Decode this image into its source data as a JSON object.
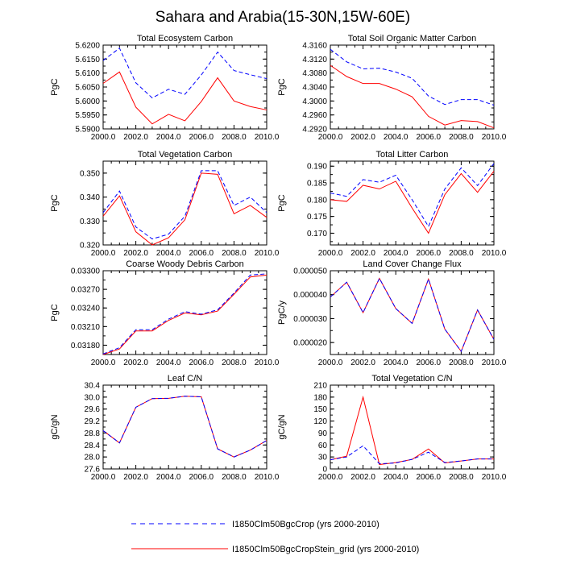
{
  "title": "Sahara and Arabia(15-30N,15W-60E)",
  "legend": [
    {
      "label": "I1850Clm50BgcCrop (yrs 2000-2010)",
      "color": "#0000ff",
      "style": "dashed"
    },
    {
      "label": "I1850Clm50BgcCropStein_grid (yrs 2000-2010)",
      "color": "#ff0000",
      "style": "solid"
    }
  ],
  "chart_data": [
    {
      "type": "line",
      "title": "Total Ecosystem Carbon",
      "ylabel": "PgC",
      "x": [
        2000,
        2001,
        2002,
        2003,
        2004,
        2005,
        2006,
        2007,
        2008,
        2009,
        2010
      ],
      "xticks": [
        "2000.0",
        "2002.0",
        "2004.0",
        "2006.0",
        "2008.0",
        "2010.0"
      ],
      "xlim": [
        2000,
        2010
      ],
      "ylim": [
        5.59,
        5.62
      ],
      "yticks": [
        "5.5900",
        "5.5950",
        "5.6000",
        "5.6050",
        "5.6100",
        "5.6150",
        "5.6200"
      ],
      "series": [
        {
          "name": "I1850Clm50BgcCrop (yrs 2000-2010)",
          "values": [
            5.6145,
            5.6189,
            5.6065,
            5.6011,
            5.6042,
            5.6024,
            5.6093,
            5.6175,
            5.6109,
            5.6094,
            5.608
          ]
        },
        {
          "name": "I1850Clm50BgcCropStein_grid (yrs 2000-2010)",
          "values": [
            5.6063,
            5.6104,
            5.5978,
            5.5918,
            5.5952,
            5.5929,
            5.5998,
            5.6083,
            5.6,
            5.598,
            5.5968
          ]
        }
      ]
    },
    {
      "type": "line",
      "title": "Total Soil Organic Matter Carbon",
      "ylabel": "PgC",
      "x": [
        2000,
        2001,
        2002,
        2003,
        2004,
        2005,
        2006,
        2007,
        2008,
        2009,
        2010
      ],
      "xticks": [
        "2000.0",
        "2002.0",
        "2004.0",
        "2006.0",
        "2008.0",
        "2010.0"
      ],
      "xlim": [
        2000,
        2010
      ],
      "ylim": [
        4.292,
        4.316
      ],
      "yticks": [
        "4.2920",
        "4.2960",
        "4.3000",
        "4.3040",
        "4.3080",
        "4.3120",
        "4.3160"
      ],
      "series": [
        {
          "name": "I1850Clm50BgcCrop (yrs 2000-2010)",
          "values": [
            4.3148,
            4.3112,
            4.3092,
            4.3094,
            4.3083,
            4.3065,
            4.3014,
            4.299,
            4.3004,
            4.3004,
            4.2988
          ]
        },
        {
          "name": "I1850Clm50BgcCropStein_grid (yrs 2000-2010)",
          "values": [
            4.3102,
            4.307,
            4.305,
            4.305,
            4.3034,
            4.3012,
            4.2956,
            4.2931,
            4.2944,
            4.2941,
            4.2923
          ]
        }
      ]
    },
    {
      "type": "line",
      "title": "Total Vegetation Carbon",
      "ylabel": "PgC",
      "x": [
        2000,
        2001,
        2002,
        2003,
        2004,
        2005,
        2006,
        2007,
        2008,
        2009,
        2010
      ],
      "xticks": [
        "2000.0",
        "2002.0",
        "2004.0",
        "2006.0",
        "2008.0",
        "2010.0"
      ],
      "xlim": [
        2000,
        2010
      ],
      "ylim": [
        0.32,
        0.355
      ],
      "yticks": [
        "0.320",
        "0.330",
        "0.340",
        "0.350"
      ],
      "series": [
        {
          "name": "I1850Clm50BgcCrop (yrs 2000-2010)",
          "values": [
            0.3335,
            0.3425,
            0.3275,
            0.3225,
            0.3245,
            0.332,
            0.351,
            0.351,
            0.3365,
            0.34,
            0.3335
          ]
        },
        {
          "name": "I1850Clm50BgcCropStein_grid (yrs 2000-2010)",
          "values": [
            0.332,
            0.3405,
            0.3255,
            0.32,
            0.323,
            0.3305,
            0.35,
            0.3495,
            0.333,
            0.3365,
            0.3315
          ]
        }
      ]
    },
    {
      "type": "line",
      "title": "Total Litter Carbon",
      "ylabel": "PgC",
      "x": [
        2000,
        2001,
        2002,
        2003,
        2004,
        2005,
        2006,
        2007,
        2008,
        2009,
        2010
      ],
      "xticks": [
        "2000.0",
        "2002.0",
        "2004.0",
        "2006.0",
        "2008.0",
        "2010.0"
      ],
      "xlim": [
        2000,
        2010
      ],
      "ylim": [
        0.1665,
        0.1915
      ],
      "yticks": [
        "0.170",
        "0.175",
        "0.180",
        "0.185",
        "0.190"
      ],
      "series": [
        {
          "name": "I1850Clm50BgcCrop (yrs 2000-2010)",
          "values": [
            0.182,
            0.181,
            0.186,
            0.1852,
            0.1873,
            0.18,
            0.172,
            0.1832,
            0.1895,
            0.1842,
            0.1908
          ]
        },
        {
          "name": "I1850Clm50BgcCropStein_grid (yrs 2000-2010)",
          "values": [
            0.18,
            0.1795,
            0.1843,
            0.1832,
            0.1855,
            0.1775,
            0.17,
            0.1815,
            0.1878,
            0.1822,
            0.1885
          ]
        }
      ]
    },
    {
      "type": "line",
      "title": "Coarse Woody Debris Carbon",
      "ylabel": "PgC",
      "x": [
        2000,
        2001,
        2002,
        2003,
        2004,
        2005,
        2006,
        2007,
        2008,
        2009,
        2010
      ],
      "xticks": [
        "2000.0",
        "2002.0",
        "2004.0",
        "2006.0",
        "2008.0",
        "2010.0"
      ],
      "xlim": [
        2000,
        2010
      ],
      "ylim": [
        0.03165,
        0.033
      ],
      "yticks": [
        "0.03180",
        "0.03210",
        "0.03240",
        "0.03270",
        "0.03300"
      ],
      "series": [
        {
          "name": "I1850Clm50BgcCrop (yrs 2000-2010)",
          "values": [
            0.03166,
            0.03176,
            0.03205,
            0.03205,
            0.03222,
            0.03234,
            0.0323,
            0.03237,
            0.03264,
            0.03293,
            0.03295
          ]
        },
        {
          "name": "I1850Clm50BgcCropStein_grid (yrs 2000-2010)",
          "values": [
            0.03165,
            0.03174,
            0.03203,
            0.03203,
            0.0322,
            0.03232,
            0.03229,
            0.03235,
            0.03262,
            0.0329,
            0.03293
          ]
        }
      ]
    },
    {
      "type": "line",
      "title": "Land Cover Change Flux",
      "ylabel": "PgC/y",
      "x": [
        2000,
        2001,
        2002,
        2003,
        2004,
        2005,
        2006,
        2007,
        2008,
        2009,
        2010
      ],
      "xticks": [
        "2000.0",
        "2002.0",
        "2004.0",
        "2006.0",
        "2008.0",
        "2010.0"
      ],
      "xlim": [
        2000,
        2010
      ],
      "ylim": [
        1.5e-05,
        5e-05
      ],
      "yticks": [
        "0.000020",
        "0.000030",
        "0.000040",
        "0.000050"
      ],
      "series": [
        {
          "name": "I1850Clm50BgcCrop (yrs 2000-2010)",
          "values": [
            3.9e-05,
            4.52e-05,
            3.25e-05,
            4.68e-05,
            3.42e-05,
            2.8e-05,
            4.65e-05,
            2.56e-05,
            1.63e-05,
            3.36e-05,
            2.13e-05
          ]
        },
        {
          "name": "I1850Clm50BgcCropStein_grid (yrs 2000-2010)",
          "values": [
            3.9e-05,
            4.52e-05,
            3.25e-05,
            4.68e-05,
            3.42e-05,
            2.8e-05,
            4.65e-05,
            2.56e-05,
            1.63e-05,
            3.36e-05,
            2.13e-05
          ]
        }
      ]
    },
    {
      "type": "line",
      "title": "Leaf C/N",
      "ylabel": "gC/gN",
      "x": [
        2000,
        2001,
        2002,
        2003,
        2004,
        2005,
        2006,
        2007,
        2008,
        2009,
        2010
      ],
      "xticks": [
        "2000.0",
        "2002.0",
        "2004.0",
        "2006.0",
        "2008.0",
        "2010.0"
      ],
      "xlim": [
        2000,
        2010
      ],
      "ylim": [
        27.6,
        30.4
      ],
      "yticks": [
        "27.6",
        "28.0",
        "28.4",
        "28.8",
        "29.2",
        "29.6",
        "30.0",
        "30.4"
      ],
      "series": [
        {
          "name": "I1850Clm50BgcCrop (yrs 2000-2010)",
          "values": [
            28.88,
            28.47,
            29.66,
            29.95,
            29.96,
            30.03,
            30.01,
            28.27,
            28.0,
            28.23,
            28.55
          ]
        },
        {
          "name": "I1850Clm50BgcCropStein_grid (yrs 2000-2010)",
          "values": [
            28.88,
            28.47,
            29.66,
            29.95,
            29.96,
            30.03,
            30.01,
            28.27,
            28.0,
            28.23,
            28.55
          ]
        }
      ]
    },
    {
      "type": "line",
      "title": "Total Vegetation C/N",
      "ylabel": "gC/gN",
      "x": [
        2000,
        2001,
        2002,
        2003,
        2004,
        2005,
        2006,
        2007,
        2008,
        2009,
        2010
      ],
      "xticks": [
        "2000.0",
        "2002.0",
        "2004.0",
        "2006.0",
        "2008.0",
        "2010.0"
      ],
      "xlim": [
        2000,
        2010
      ],
      "ylim": [
        0,
        210
      ],
      "yticks": [
        "0",
        "30",
        "60",
        "90",
        "120",
        "150",
        "180",
        "210"
      ],
      "series": [
        {
          "name": "I1850Clm50BgcCrop (yrs 2000-2010)",
          "values": [
            23,
            30,
            58,
            13,
            15,
            24,
            42,
            16,
            20,
            25,
            25
          ]
        },
        {
          "name": "I1850Clm50BgcCropStein_grid (yrs 2000-2010)",
          "values": [
            23,
            32,
            180,
            11,
            16,
            24,
            50,
            15,
            20,
            25,
            25
          ]
        }
      ]
    }
  ]
}
